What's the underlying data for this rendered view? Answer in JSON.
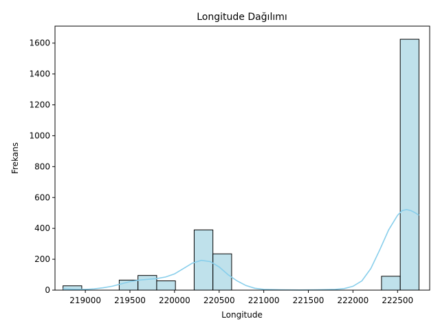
{
  "chart_data": {
    "type": "histogram",
    "title": "Longitude Dağılımı",
    "xlabel": "Longitude",
    "ylabel": "Frekans",
    "xlim": [
      218660,
      222860
    ],
    "ylim": [
      0,
      1710
    ],
    "x_ticks": [
      219000,
      219500,
      220000,
      220500,
      221000,
      221500,
      222000,
      222500
    ],
    "y_ticks": [
      0,
      200,
      400,
      600,
      800,
      1000,
      1200,
      1400,
      1600
    ],
    "bins": [
      {
        "x0": 218750,
        "x1": 218960,
        "count": 28
      },
      {
        "x0": 218960,
        "x1": 219170,
        "count": 0
      },
      {
        "x0": 219170,
        "x1": 219380,
        "count": 0
      },
      {
        "x0": 219380,
        "x1": 219590,
        "count": 65
      },
      {
        "x0": 219590,
        "x1": 219800,
        "count": 95
      },
      {
        "x0": 219800,
        "x1": 220010,
        "count": 60
      },
      {
        "x0": 220010,
        "x1": 220220,
        "count": 0
      },
      {
        "x0": 220220,
        "x1": 220430,
        "count": 390
      },
      {
        "x0": 220430,
        "x1": 220640,
        "count": 235
      },
      {
        "x0": 220640,
        "x1": 220850,
        "count": 0
      },
      {
        "x0": 220850,
        "x1": 221060,
        "count": 0
      },
      {
        "x0": 221060,
        "x1": 221270,
        "count": 0
      },
      {
        "x0": 221270,
        "x1": 221480,
        "count": 0
      },
      {
        "x0": 221480,
        "x1": 221690,
        "count": 0
      },
      {
        "x0": 221690,
        "x1": 221900,
        "count": 0
      },
      {
        "x0": 221900,
        "x1": 222110,
        "count": 0
      },
      {
        "x0": 222110,
        "x1": 222320,
        "count": 0
      },
      {
        "x0": 222320,
        "x1": 222530,
        "count": 90
      },
      {
        "x0": 222530,
        "x1": 222740,
        "count": 1625
      }
    ],
    "kde": {
      "x": [
        218750,
        218900,
        219000,
        219100,
        219200,
        219300,
        219400,
        219500,
        219600,
        219700,
        219800,
        219900,
        220000,
        220100,
        220200,
        220300,
        220400,
        220500,
        220600,
        220700,
        220800,
        220900,
        221000,
        221200,
        221400,
        221600,
        221800,
        221900,
        222000,
        222100,
        222200,
        222300,
        222400,
        222500,
        222550,
        222600,
        222650,
        222700,
        222740
      ],
      "y": [
        8,
        5,
        5,
        8,
        15,
        25,
        40,
        55,
        65,
        70,
        75,
        85,
        105,
        140,
        175,
        193,
        185,
        150,
        100,
        60,
        30,
        12,
        5,
        2,
        1,
        2,
        5,
        10,
        25,
        60,
        140,
        260,
        390,
        485,
        515,
        522,
        515,
        500,
        485
      ]
    },
    "bar_fill": "#add8e6",
    "bar_stroke": "#000000",
    "kde_color": "#87ceeb",
    "grid": false
  }
}
